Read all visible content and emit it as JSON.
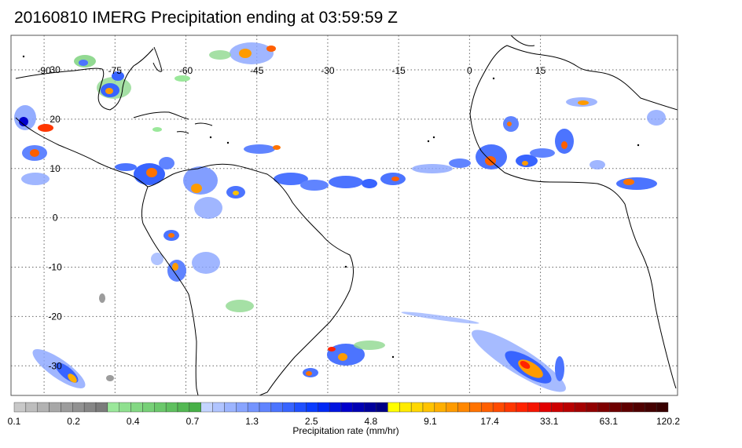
{
  "title": "20160810 IMERG Precipitation ending at 03:59:59 Z",
  "map": {
    "lon_range": [
      -97,
      44
    ],
    "lat_range": [
      -36,
      37
    ],
    "grid": true,
    "lon_ticks": [
      {
        "value": -90,
        "label": "-90"
      },
      {
        "value": -75,
        "label": "-75"
      },
      {
        "value": -60,
        "label": "-60"
      },
      {
        "value": -45,
        "label": "-45"
      },
      {
        "value": -30,
        "label": "-30"
      },
      {
        "value": -15,
        "label": "-15"
      },
      {
        "value": 0,
        "label": "0"
      },
      {
        "value": 15,
        "label": "15"
      }
    ],
    "lat_ticks": [
      {
        "value": 30,
        "label": "30"
      },
      {
        "value": 20,
        "label": "20"
      },
      {
        "value": 10,
        "label": "10"
      },
      {
        "value": 0,
        "label": "0"
      },
      {
        "value": -10,
        "label": "-10"
      },
      {
        "value": -20,
        "label": "-20"
      },
      {
        "value": -30,
        "label": "-30"
      }
    ]
  },
  "colorbar": {
    "label": "Precipitation rate (mm/hr)",
    "tick_labels": [
      "0.1",
      "0.2",
      "0.4",
      "0.7",
      "1.3",
      "2.5",
      "4.8",
      "9.1",
      "17.4",
      "33.1",
      "63.1",
      "120.2"
    ],
    "colors": [
      "#c8c8c8",
      "#bdbdbd",
      "#b2b2b2",
      "#a7a7a7",
      "#9c9c9c",
      "#919191",
      "#868686",
      "#7b7b7b",
      "#9be89b",
      "#8fe08f",
      "#83d883",
      "#77d077",
      "#6bc86b",
      "#5fc05f",
      "#53b853",
      "#47b047",
      "#c4d4ff",
      "#b0c4ff",
      "#9cb4ff",
      "#88a4ff",
      "#7494ff",
      "#6084ff",
      "#4c74ff",
      "#3864ff",
      "#2050ff",
      "#0a3cff",
      "#0028f5",
      "#0014e0",
      "#0000cc",
      "#0000b4",
      "#00009c",
      "#000084",
      "#ffff00",
      "#ffeb00",
      "#ffd700",
      "#ffc300",
      "#ffaf00",
      "#ff9b00",
      "#ff8700",
      "#ff7300",
      "#ff5f00",
      "#ff4b00",
      "#ff3700",
      "#ff2300",
      "#f51400",
      "#e10000",
      "#cd0000",
      "#b90000",
      "#a50000",
      "#910000",
      "#7d0000",
      "#6e0000",
      "#5f0000",
      "#500000",
      "#440000",
      "#380000"
    ]
  }
}
